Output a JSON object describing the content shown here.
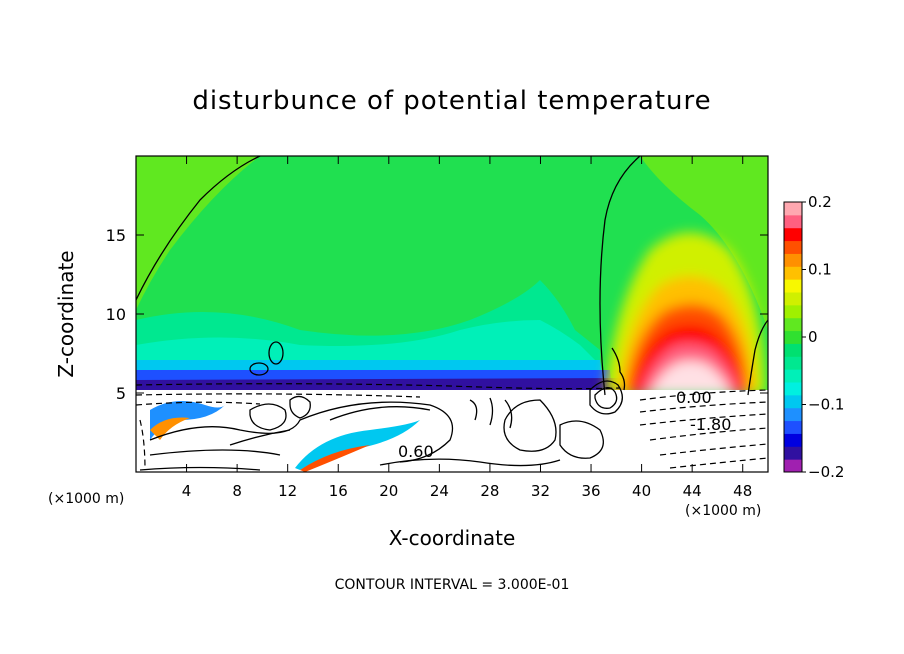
{
  "chart_data": {
    "type": "heatmap",
    "title": "disturbunce of potential temperature",
    "xlabel": "X-coordinate",
    "ylabel": "Z-coordinate",
    "x_unit_left": "(×1000 m)",
    "x_unit_right": "(×1000 m)",
    "footer": "CONTOUR INTERVAL = 3.000E-01",
    "xlim": [
      0,
      50
    ],
    "ylim": [
      0,
      20
    ],
    "x_ticks": [
      "4",
      "8",
      "12",
      "16",
      "20",
      "24",
      "28",
      "32",
      "36",
      "40",
      "44",
      "48"
    ],
    "y_ticks": [
      "5",
      "10",
      "15"
    ],
    "colorbar": {
      "range": [
        -0.2,
        0.2
      ],
      "tick_labels": [
        "0.2",
        "0.1",
        "0",
        "−0.1",
        "−0.2"
      ],
      "colors": [
        "#a020b0",
        "#3010a0",
        "#0000e0",
        "#1e50ff",
        "#1e90ff",
        "#00c8f0",
        "#00f0e0",
        "#00f0b8",
        "#00e890",
        "#00e070",
        "#30e030",
        "#60e820",
        "#a0f000",
        "#d0f000",
        "#f8f800",
        "#ffc000",
        "#ff9000",
        "#ff5000",
        "#ff0000",
        "#ff6080",
        "#ffa8b0"
      ]
    },
    "contour_labels": [
      "0.60",
      "0.00",
      "-1.80"
    ]
  },
  "colors": {
    "frame": "#000000",
    "background": "#ffffff",
    "lower_layer": "#ffffff"
  }
}
